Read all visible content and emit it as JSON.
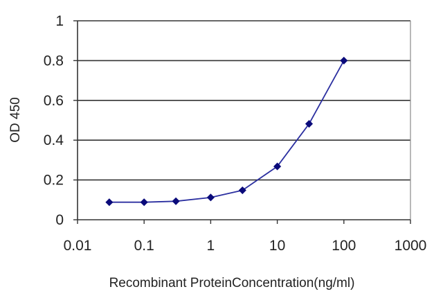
{
  "chart_data": {
    "type": "line",
    "title": "",
    "xlabel": "Recombinant ProteinConcentration(ng/ml)",
    "ylabel": "OD 450",
    "x_scale": "log",
    "xlim": [
      0.01,
      1000
    ],
    "ylim": [
      0,
      1
    ],
    "x_ticks": [
      0.01,
      0.1,
      1,
      10,
      100,
      1000
    ],
    "x_tick_labels": [
      "0.01",
      "0.1",
      "1",
      "10",
      "100",
      "1000"
    ],
    "y_ticks": [
      0,
      0.2,
      0.4,
      0.6,
      0.8,
      1
    ],
    "y_tick_labels": [
      "0",
      "0.2",
      "0.4",
      "0.6",
      "0.8",
      "1"
    ],
    "grid": "horizontal",
    "legend": "none",
    "series": [
      {
        "x": [
          0.03,
          0.1,
          0.3,
          1,
          3,
          10,
          30,
          100
        ],
        "y": [
          0.088,
          0.088,
          0.093,
          0.112,
          0.148,
          0.268,
          0.482,
          0.8
        ],
        "color": "#2b2fa0",
        "marker": "diamond",
        "marker_color": "#0a0a7a"
      }
    ]
  }
}
